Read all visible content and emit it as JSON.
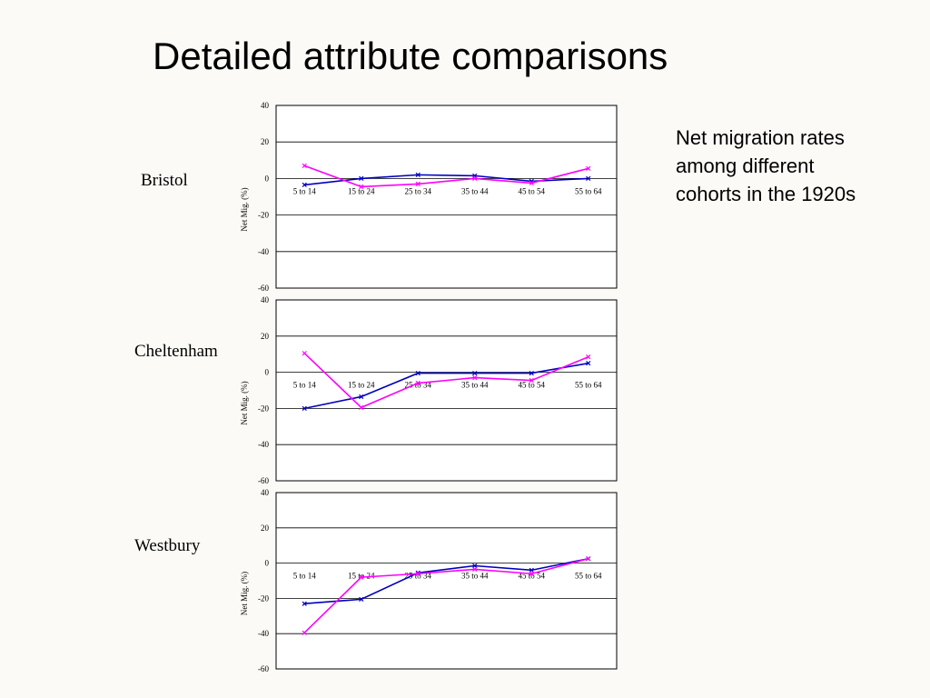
{
  "title": "Detailed attribute comparisons",
  "note_lines": [
    "Net migration rates",
    "among different",
    "cohorts in the 1920s"
  ],
  "colors": {
    "series_a": "#0000c0",
    "series_b": "#ff00ff",
    "grid": "#000000"
  },
  "chart_data": [
    {
      "type": "line",
      "label": "Bristol",
      "categories": [
        "5 to 14",
        "15 to 24",
        "25 to 34",
        "35 to 44",
        "45 to 54",
        "55 to 64"
      ],
      "ylabel": "Net Mig. (%)",
      "ylim": [
        -60,
        40
      ],
      "yticks": [
        40,
        20,
        0,
        -20,
        -40,
        -60
      ],
      "grid": true,
      "legend": "none",
      "series": [
        {
          "values": [
            -3.5,
            0,
            2,
            1.5,
            -1.5,
            0
          ],
          "color": "#0000c0"
        },
        {
          "values": [
            7,
            -4.5,
            -3,
            0,
            -2.5,
            5.5
          ],
          "color": "#ff00ff"
        }
      ]
    },
    {
      "type": "line",
      "label": "Cheltenham",
      "categories": [
        "5 to 14",
        "15 to 24",
        "25 to 34",
        "35 to 44",
        "45 to 54",
        "55 to 64"
      ],
      "ylabel": "Net Mig. (%)",
      "ylim": [
        -60,
        40
      ],
      "yticks": [
        40,
        20,
        0,
        -20,
        -40,
        -60
      ],
      "grid": true,
      "legend": "none",
      "series": [
        {
          "values": [
            -20,
            -13.5,
            -0.5,
            -0.5,
            -0.5,
            5
          ],
          "color": "#0000c0"
        },
        {
          "values": [
            10.5,
            -19.5,
            -6,
            -3,
            -4.5,
            8.5
          ],
          "color": "#ff00ff"
        }
      ]
    },
    {
      "type": "line",
      "label": "Westbury",
      "categories": [
        "5 to 14",
        "15 to 24",
        "25 to 34",
        "35 to 44",
        "45 to 54",
        "55 to 64"
      ],
      "ylabel": "Net Mig. (%)",
      "ylim": [
        -60,
        40
      ],
      "yticks": [
        40,
        20,
        0,
        -20,
        -40,
        -60
      ],
      "grid": true,
      "legend": "none",
      "series": [
        {
          "values": [
            -23,
            -20.5,
            -5.5,
            -1.5,
            -4,
            2.5
          ],
          "color": "#0000c0"
        },
        {
          "values": [
            -39.5,
            -8,
            -6,
            -3.5,
            -6,
            2.5
          ],
          "color": "#ff00ff"
        }
      ]
    }
  ]
}
